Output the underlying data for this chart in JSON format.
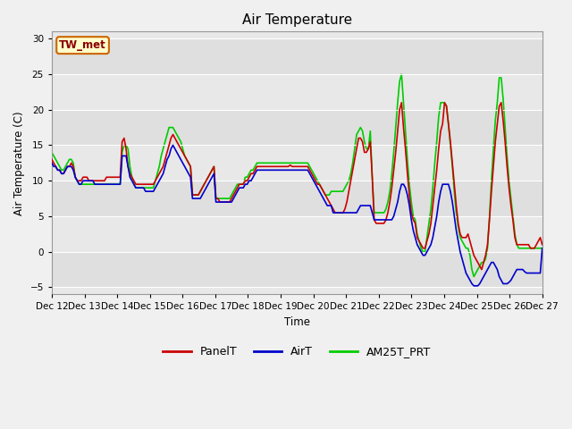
{
  "title": "Air Temperature",
  "ylabel": "Air Temperature (C)",
  "xlabel": "Time",
  "ylim": [
    -6,
    31
  ],
  "yticks": [
    -5,
    0,
    5,
    10,
    15,
    20,
    25,
    30
  ],
  "fig_bg": "#f0f0f0",
  "plot_bg": "#e8e8e8",
  "legend_label": "TW_met",
  "series": {
    "PanelT": {
      "color": "#cc0000",
      "lw": 1.2
    },
    "AirT": {
      "color": "#0000cc",
      "lw": 1.2
    },
    "AM25T_PRT": {
      "color": "#00cc00",
      "lw": 1.2
    }
  },
  "xtick_labels": [
    "Dec 12",
    "Dec 13",
    "Dec 14",
    "Dec 15",
    "Dec 16",
    "Dec 17",
    "Dec 18",
    "Dec 19",
    "Dec 20",
    "Dec 21",
    "Dec 22",
    "Dec 23",
    "Dec 24",
    "Dec 25",
    "Dec 26",
    "Dec 27"
  ],
  "PanelT": [
    13.0,
    12.5,
    12.0,
    11.5,
    11.5,
    11.0,
    11.0,
    11.5,
    12.0,
    12.0,
    12.5,
    12.0,
    10.5,
    10.0,
    10.0,
    10.0,
    10.5,
    10.5,
    10.5,
    10.0,
    10.0,
    10.0,
    10.0,
    10.0,
    10.0,
    10.0,
    10.0,
    10.0,
    10.5,
    10.5,
    10.5,
    10.5,
    10.5,
    10.5,
    10.5,
    10.5,
    15.5,
    16.0,
    14.5,
    12.0,
    11.0,
    10.5,
    10.0,
    9.5,
    9.5,
    9.5,
    9.5,
    9.5,
    9.5,
    9.5,
    9.5,
    9.5,
    9.5,
    10.0,
    10.5,
    11.0,
    11.5,
    12.0,
    13.0,
    14.0,
    15.0,
    16.0,
    16.5,
    16.0,
    15.5,
    15.0,
    14.5,
    14.0,
    13.5,
    13.0,
    12.5,
    12.0,
    8.0,
    8.0,
    8.0,
    8.0,
    8.5,
    9.0,
    9.5,
    10.0,
    10.5,
    11.0,
    11.5,
    12.0,
    7.5,
    7.5,
    7.0,
    7.0,
    7.0,
    7.0,
    7.0,
    7.0,
    7.5,
    8.0,
    8.5,
    9.0,
    9.5,
    9.5,
    9.5,
    10.0,
    10.0,
    10.5,
    11.0,
    11.0,
    11.5,
    12.0,
    12.0,
    12.0,
    12.0,
    12.0,
    12.0,
    12.0,
    12.0,
    12.0,
    12.0,
    12.0,
    12.0,
    12.0,
    12.0,
    12.0,
    12.0,
    12.0,
    12.2,
    12.0,
    12.0,
    12.0,
    12.0,
    12.0,
    12.0,
    12.0,
    12.0,
    12.0,
    11.5,
    11.0,
    10.5,
    10.0,
    9.5,
    9.5,
    9.0,
    8.5,
    8.0,
    7.5,
    7.0,
    6.5,
    6.0,
    5.5,
    5.5,
    5.5,
    5.5,
    5.5,
    6.0,
    7.0,
    8.5,
    10.0,
    11.5,
    13.0,
    14.5,
    16.0,
    16.0,
    15.5,
    14.0,
    14.0,
    14.5,
    15.5,
    10.5,
    4.5,
    4.0,
    4.0,
    4.0,
    4.0,
    4.0,
    4.5,
    5.5,
    7.0,
    9.0,
    11.5,
    14.0,
    17.0,
    20.0,
    21.0,
    17.5,
    14.5,
    11.0,
    8.0,
    5.5,
    4.5,
    4.0,
    2.0,
    1.5,
    1.0,
    0.5,
    0.5,
    1.5,
    2.5,
    4.0,
    6.5,
    9.0,
    11.5,
    14.5,
    17.0,
    18.0,
    21.0,
    20.5,
    18.0,
    15.5,
    12.5,
    9.5,
    6.5,
    4.0,
    2.5,
    2.0,
    2.0,
    2.0,
    2.5,
    1.5,
    0.5,
    -0.5,
    -1.0,
    -1.5,
    -2.0,
    -2.5,
    -1.5,
    -0.5,
    1.0,
    4.5,
    8.5,
    12.0,
    15.5,
    18.0,
    20.5,
    21.0,
    18.5,
    15.5,
    12.0,
    9.0,
    6.5,
    4.5,
    2.0,
    1.0,
    1.0,
    1.0,
    1.0,
    1.0,
    1.0,
    1.0,
    0.5,
    0.5,
    0.5,
    1.0,
    1.5,
    2.0,
    1.0
  ],
  "AirT": [
    12.5,
    12.0,
    12.0,
    11.5,
    11.5,
    11.0,
    11.0,
    11.5,
    12.0,
    12.0,
    12.0,
    11.5,
    10.5,
    10.0,
    9.5,
    9.5,
    10.0,
    10.0,
    10.0,
    10.0,
    10.0,
    10.0,
    9.5,
    9.5,
    9.5,
    9.5,
    9.5,
    9.5,
    9.5,
    9.5,
    9.5,
    9.5,
    9.5,
    9.5,
    9.5,
    9.5,
    13.5,
    13.5,
    13.5,
    12.0,
    10.5,
    10.0,
    9.5,
    9.0,
    9.0,
    9.0,
    9.0,
    9.0,
    8.5,
    8.5,
    8.5,
    8.5,
    8.5,
    9.0,
    9.5,
    10.0,
    10.5,
    11.0,
    12.0,
    13.0,
    13.5,
    14.5,
    15.0,
    14.5,
    14.0,
    13.5,
    13.0,
    12.5,
    12.0,
    11.5,
    11.0,
    10.5,
    7.5,
    7.5,
    7.5,
    7.5,
    7.5,
    8.0,
    8.5,
    9.0,
    9.5,
    10.0,
    10.5,
    11.0,
    7.0,
    7.0,
    7.0,
    7.0,
    7.0,
    7.0,
    7.0,
    7.0,
    7.0,
    7.5,
    8.0,
    8.5,
    9.0,
    9.0,
    9.0,
    9.5,
    9.5,
    10.0,
    10.0,
    10.5,
    11.0,
    11.5,
    11.5,
    11.5,
    11.5,
    11.5,
    11.5,
    11.5,
    11.5,
    11.5,
    11.5,
    11.5,
    11.5,
    11.5,
    11.5,
    11.5,
    11.5,
    11.5,
    11.5,
    11.5,
    11.5,
    11.5,
    11.5,
    11.5,
    11.5,
    11.5,
    11.5,
    11.5,
    11.0,
    10.5,
    10.0,
    9.5,
    9.0,
    8.5,
    8.0,
    7.5,
    7.0,
    6.5,
    6.5,
    6.5,
    5.5,
    5.5,
    5.5,
    5.5,
    5.5,
    5.5,
    5.5,
    5.5,
    5.5,
    5.5,
    5.5,
    5.5,
    5.5,
    6.0,
    6.5,
    6.5,
    6.5,
    6.5,
    6.5,
    6.5,
    5.5,
    4.5,
    4.5,
    4.5,
    4.5,
    4.5,
    4.5,
    4.5,
    4.5,
    4.5,
    4.5,
    5.0,
    6.0,
    7.0,
    8.5,
    9.5,
    9.5,
    9.0,
    8.0,
    6.5,
    4.5,
    3.0,
    2.0,
    1.0,
    0.5,
    0.0,
    -0.5,
    -0.5,
    0.0,
    0.5,
    1.0,
    2.0,
    3.5,
    5.0,
    7.0,
    8.5,
    9.5,
    9.5,
    9.5,
    9.5,
    8.5,
    7.0,
    5.0,
    3.0,
    1.5,
    0.0,
    -1.0,
    -2.0,
    -3.0,
    -3.5,
    -4.0,
    -4.5,
    -4.8,
    -4.8,
    -4.8,
    -4.5,
    -4.0,
    -3.5,
    -3.0,
    -2.5,
    -2.0,
    -1.5,
    -1.5,
    -2.0,
    -2.5,
    -3.5,
    -4.0,
    -4.5,
    -4.5,
    -4.5,
    -4.3,
    -4.0,
    -3.5,
    -3.0,
    -2.5,
    -2.5,
    -2.5,
    -2.5,
    -2.8,
    -3.0,
    -3.0,
    -3.0,
    -3.0,
    -3.0,
    -3.0,
    -3.0,
    -3.0,
    0.5
  ],
  "AM25T_PRT": [
    14.0,
    13.5,
    13.0,
    12.5,
    12.0,
    11.5,
    11.5,
    12.0,
    12.5,
    13.0,
    13.0,
    12.5,
    10.5,
    10.0,
    9.5,
    9.5,
    9.5,
    9.5,
    9.5,
    9.5,
    9.5,
    9.5,
    9.5,
    9.5,
    9.5,
    9.5,
    9.5,
    9.5,
    9.5,
    9.5,
    9.5,
    9.5,
    9.5,
    9.5,
    9.5,
    9.5,
    14.0,
    15.0,
    15.0,
    14.5,
    12.0,
    10.5,
    9.5,
    9.0,
    9.0,
    9.0,
    9.0,
    9.0,
    9.0,
    9.0,
    9.0,
    9.0,
    9.0,
    10.0,
    11.0,
    12.0,
    13.5,
    14.5,
    15.5,
    16.5,
    17.5,
    17.5,
    17.5,
    17.0,
    16.5,
    16.0,
    15.5,
    14.5,
    13.5,
    13.0,
    12.5,
    12.0,
    8.0,
    8.0,
    8.0,
    8.0,
    8.5,
    9.0,
    9.5,
    10.0,
    10.5,
    11.0,
    11.5,
    12.0,
    7.5,
    7.5,
    7.5,
    7.5,
    7.5,
    7.5,
    7.5,
    7.5,
    8.0,
    8.5,
    9.0,
    9.5,
    9.5,
    9.5,
    9.5,
    10.5,
    10.5,
    11.0,
    11.5,
    11.5,
    12.0,
    12.5,
    12.5,
    12.5,
    12.5,
    12.5,
    12.5,
    12.5,
    12.5,
    12.5,
    12.5,
    12.5,
    12.5,
    12.5,
    12.5,
    12.5,
    12.5,
    12.5,
    12.5,
    12.5,
    12.5,
    12.5,
    12.5,
    12.5,
    12.5,
    12.5,
    12.5,
    12.5,
    12.0,
    11.5,
    11.0,
    10.5,
    10.0,
    9.5,
    9.0,
    8.5,
    8.0,
    8.0,
    8.0,
    8.5,
    8.5,
    8.5,
    8.5,
    8.5,
    8.5,
    8.5,
    9.0,
    9.5,
    10.0,
    11.0,
    12.5,
    14.5,
    16.5,
    17.0,
    17.5,
    17.0,
    15.5,
    14.5,
    14.5,
    17.0,
    10.5,
    5.5,
    5.5,
    5.5,
    5.5,
    5.5,
    5.5,
    6.0,
    7.0,
    8.5,
    11.0,
    14.0,
    17.5,
    21.0,
    24.0,
    25.0,
    21.0,
    17.0,
    13.0,
    9.5,
    7.0,
    5.0,
    4.5,
    2.5,
    1.5,
    0.5,
    0.0,
    0.0,
    2.0,
    4.0,
    6.0,
    9.0,
    12.5,
    15.5,
    19.0,
    21.0,
    21.0,
    21.0,
    20.5,
    18.0,
    15.0,
    12.0,
    8.5,
    5.5,
    3.5,
    2.0,
    1.5,
    1.0,
    0.5,
    0.5,
    -0.5,
    -2.5,
    -3.5,
    -3.0,
    -2.5,
    -2.0,
    -1.5,
    -1.5,
    -1.0,
    0.5,
    5.0,
    10.0,
    14.5,
    18.5,
    21.0,
    24.5,
    24.5,
    21.5,
    17.5,
    13.5,
    10.0,
    7.5,
    5.0,
    2.5,
    1.0,
    0.5,
    0.5,
    0.5,
    0.5,
    0.5,
    0.5,
    0.5,
    0.5,
    0.5,
    0.5,
    0.5,
    0.5,
    0.5
  ]
}
